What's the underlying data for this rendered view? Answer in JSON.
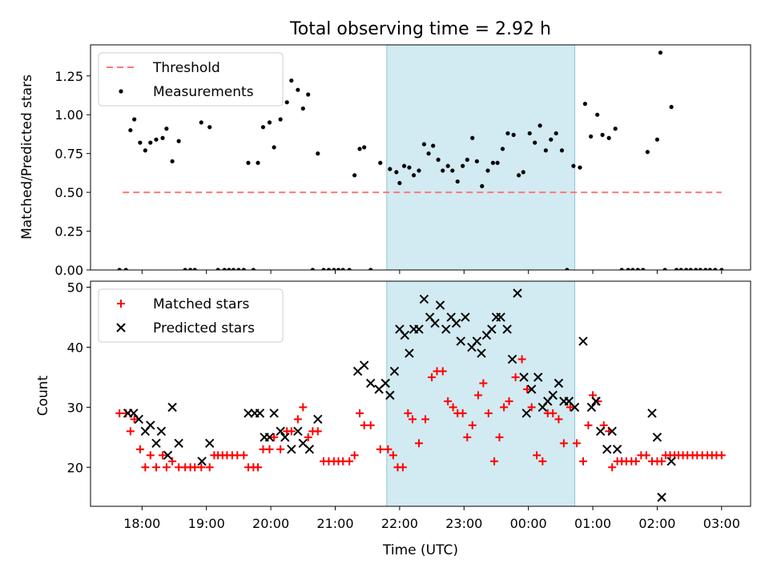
{
  "chart_data": [
    {
      "type": "scatter",
      "title": "Total observing time = 2.92 h",
      "ylabel": "Matched/Predicted stars",
      "xlabel": "",
      "ylim": [
        0,
        1.45
      ],
      "yticks": [
        0.0,
        0.25,
        0.5,
        0.75,
        1.0,
        1.25
      ],
      "ytick_labels": [
        "0.00",
        "0.25",
        "0.50",
        "0.75",
        "1.00",
        "1.25"
      ],
      "grid": false,
      "legend_position": "top-left",
      "shaded_region": {
        "x_start": 21.8,
        "x_end": 24.72,
        "color": "#add8e6"
      },
      "series": [
        {
          "name": "Threshold",
          "kind": "dashed-line",
          "color": "#ff7777",
          "x": [
            17.7,
            27.0
          ],
          "y": [
            0.5,
            0.5
          ]
        },
        {
          "name": "Measurements",
          "kind": "points",
          "color": "#000000",
          "x": [
            17.65,
            17.75,
            17.82,
            17.88,
            17.97,
            18.05,
            18.13,
            18.22,
            18.32,
            18.38,
            18.47,
            18.57,
            18.67,
            18.75,
            18.82,
            18.92,
            19.05,
            19.18,
            19.28,
            19.35,
            19.42,
            19.5,
            19.58,
            19.65,
            19.73,
            19.8,
            19.88,
            19.98,
            20.05,
            20.15,
            20.25,
            20.32,
            20.42,
            20.5,
            20.58,
            20.65,
            20.73,
            20.82,
            20.9,
            20.98,
            21.05,
            21.12,
            21.22,
            21.3,
            21.38,
            21.45,
            21.55,
            21.7,
            21.85,
            21.95,
            22.0,
            22.07,
            22.15,
            22.22,
            22.3,
            22.38,
            22.45,
            22.52,
            22.6,
            22.67,
            22.75,
            22.82,
            22.9,
            22.98,
            23.05,
            23.13,
            23.2,
            23.28,
            23.37,
            23.45,
            23.52,
            23.6,
            23.68,
            23.77,
            23.85,
            23.92,
            24.02,
            24.1,
            24.18,
            24.27,
            24.35,
            24.43,
            24.52,
            24.6,
            24.7,
            24.8,
            24.88,
            24.97,
            25.07,
            25.15,
            25.25,
            25.35,
            25.45,
            25.55,
            25.62,
            25.7,
            25.78,
            25.85,
            26.0,
            26.05,
            26.12,
            26.22,
            26.3,
            26.37,
            26.45,
            26.52,
            26.6,
            26.67,
            26.75,
            26.82,
            26.9,
            27.0
          ],
          "y": [
            0.0,
            0.0,
            0.9,
            0.97,
            0.82,
            0.77,
            0.82,
            0.84,
            0.85,
            0.91,
            0.7,
            0.83,
            0.0,
            0.0,
            0.0,
            0.95,
            0.92,
            0.0,
            0.0,
            0.0,
            0.0,
            0.0,
            0.0,
            0.69,
            0.0,
            0.69,
            0.92,
            0.95,
            0.79,
            0.97,
            1.08,
            1.22,
            1.16,
            1.04,
            1.13,
            0.0,
            0.75,
            0.0,
            0.0,
            0.0,
            0.0,
            0.0,
            0.0,
            0.61,
            0.78,
            0.79,
            0.0,
            0.69,
            0.65,
            0.63,
            0.56,
            0.67,
            0.66,
            0.61,
            0.64,
            0.81,
            0.75,
            0.8,
            0.71,
            0.64,
            0.67,
            0.64,
            0.57,
            0.67,
            0.71,
            0.85,
            0.7,
            0.54,
            0.64,
            0.69,
            0.69,
            0.78,
            0.88,
            0.87,
            0.61,
            0.63,
            0.88,
            0.82,
            0.93,
            0.77,
            0.84,
            0.88,
            0.77,
            0.0,
            0.67,
            0.66,
            1.07,
            0.86,
            1.0,
            0.87,
            0.85,
            0.91,
            0.0,
            0.0,
            0.0,
            0.0,
            0.0,
            0.76,
            0.84,
            1.4,
            0.0,
            1.05,
            0.0,
            0.0,
            0.0,
            0.0,
            0.0,
            0.0,
            0.0,
            0.0,
            0.0,
            0.0
          ]
        }
      ]
    },
    {
      "type": "scatter",
      "title": "",
      "ylabel": "Count",
      "xlabel": "Time (UTC)",
      "ylim": [
        13.5,
        51
      ],
      "yticks": [
        20,
        30,
        40,
        50
      ],
      "ytick_labels": [
        "20",
        "30",
        "40",
        "50"
      ],
      "xlim": [
        17.2,
        27.45
      ],
      "xticks": [
        18,
        19,
        20,
        21,
        22,
        23,
        24,
        25,
        26,
        27
      ],
      "xtick_labels": [
        "18:00",
        "19:00",
        "20:00",
        "21:00",
        "22:00",
        "23:00",
        "00:00",
        "01:00",
        "02:00",
        "03:00"
      ],
      "grid": false,
      "legend_position": "top-left",
      "shaded_region": {
        "x_start": 21.8,
        "x_end": 24.72,
        "color": "#add8e6"
      },
      "series": [
        {
          "name": "Matched stars",
          "kind": "plus",
          "color": "#ff0000",
          "x": [
            17.65,
            17.75,
            17.82,
            17.88,
            17.97,
            18.05,
            18.13,
            18.22,
            18.32,
            18.38,
            18.47,
            18.57,
            18.67,
            18.75,
            18.82,
            18.92,
            19.05,
            19.12,
            19.18,
            19.25,
            19.32,
            19.4,
            19.48,
            19.58,
            19.65,
            19.73,
            19.8,
            19.88,
            19.98,
            20.05,
            20.15,
            20.25,
            20.32,
            20.42,
            20.5,
            20.58,
            20.65,
            20.73,
            20.82,
            20.9,
            20.98,
            21.05,
            21.12,
            21.22,
            21.3,
            21.38,
            21.45,
            21.55,
            21.7,
            21.82,
            21.9,
            21.97,
            22.05,
            22.13,
            22.2,
            22.3,
            22.4,
            22.5,
            22.58,
            22.67,
            22.75,
            22.83,
            22.9,
            22.98,
            23.05,
            23.13,
            23.22,
            23.3,
            23.38,
            23.47,
            23.55,
            23.62,
            23.7,
            23.8,
            23.9,
            23.98,
            24.05,
            24.13,
            24.22,
            24.3,
            24.38,
            24.47,
            24.55,
            24.65,
            24.75,
            24.85,
            24.93,
            25.0,
            25.08,
            25.17,
            25.25,
            25.3,
            25.38,
            25.45,
            25.52,
            25.6,
            25.67,
            25.75,
            25.83,
            25.92,
            26.0,
            26.07,
            26.13,
            26.2,
            26.27,
            26.33,
            26.4,
            26.47,
            26.55,
            26.62,
            26.7,
            26.78,
            26.85,
            26.92,
            27.0
          ],
          "y": [
            29,
            29,
            26,
            28,
            23,
            20,
            22,
            20,
            22,
            20,
            21,
            20,
            20,
            20,
            20,
            20,
            20,
            22,
            22,
            22,
            22,
            22,
            22,
            22,
            20,
            20,
            20,
            23,
            23,
            25,
            23,
            26,
            26,
            28,
            30,
            25,
            26,
            26,
            21,
            21,
            21,
            21,
            21,
            21,
            22,
            29,
            27,
            27,
            23,
            23,
            22,
            20,
            20,
            29,
            28,
            24,
            28,
            35,
            36,
            36,
            31,
            30,
            29,
            29,
            25,
            27,
            32,
            34,
            29,
            21,
            25,
            30,
            31,
            35,
            38,
            33,
            30,
            22,
            21,
            29,
            29,
            28,
            24,
            30,
            24,
            21,
            27,
            32,
            31,
            27,
            26,
            20,
            21,
            21,
            21,
            21,
            21,
            22,
            22,
            21,
            21,
            21,
            22,
            22,
            22,
            22,
            22,
            22,
            22,
            22,
            22,
            22,
            22,
            22,
            22
          ],
          "ticks_shared": true
        },
        {
          "name": "Predicted stars",
          "kind": "x",
          "color": "#000000",
          "x": [
            17.78,
            17.87,
            17.95,
            18.05,
            18.13,
            18.22,
            18.3,
            18.4,
            18.47,
            18.57,
            18.93,
            19.05,
            19.65,
            19.75,
            19.83,
            19.9,
            19.98,
            20.05,
            20.15,
            20.22,
            20.32,
            20.42,
            20.5,
            20.6,
            20.73,
            21.35,
            21.45,
            21.55,
            21.68,
            21.78,
            21.85,
            21.92,
            22.0,
            22.08,
            22.15,
            22.22,
            22.3,
            22.38,
            22.47,
            22.55,
            22.63,
            22.72,
            22.8,
            22.88,
            22.95,
            23.02,
            23.12,
            23.2,
            23.27,
            23.35,
            23.43,
            23.5,
            23.57,
            23.67,
            23.75,
            23.83,
            23.93,
            23.97,
            24.05,
            24.15,
            24.22,
            24.3,
            24.38,
            24.47,
            24.55,
            24.63,
            24.72,
            24.85,
            24.98,
            25.05,
            25.12,
            25.22,
            25.3,
            25.38,
            25.92,
            26.0,
            26.07,
            26.22
          ],
          "y": [
            29,
            29,
            28,
            26,
            27,
            24,
            26,
            22,
            30,
            24,
            21,
            24,
            29,
            29,
            29,
            25,
            25,
            29,
            26,
            25,
            23,
            26,
            24,
            23,
            28,
            36,
            37,
            34,
            33,
            34,
            32,
            36,
            43,
            42,
            39,
            43,
            43,
            48,
            45,
            44,
            47,
            43,
            45,
            44,
            41,
            45,
            40,
            41,
            39,
            42,
            43,
            45,
            45,
            43,
            38,
            49,
            35,
            29,
            33,
            35,
            30,
            31,
            32,
            34,
            31,
            31,
            30,
            41,
            30,
            31,
            26,
            23,
            26,
            23,
            29,
            25,
            15,
            21
          ]
        }
      ]
    }
  ]
}
